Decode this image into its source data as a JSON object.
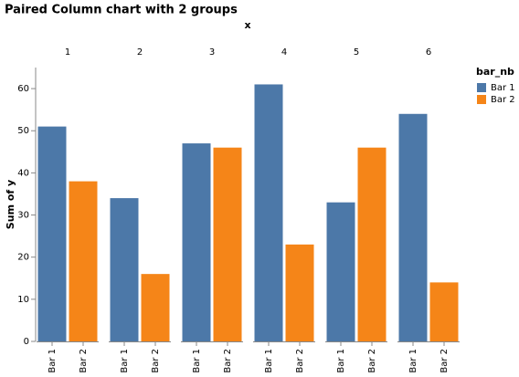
{
  "chart_data": {
    "type": "bar",
    "title": "Paired Column chart with 2 groups",
    "column_title": "x",
    "y_label": "Sum of y",
    "legend_title": "bar_nb",
    "categories": [
      "1",
      "2",
      "3",
      "4",
      "5",
      "6"
    ],
    "series": [
      {
        "name": "Bar 1",
        "color": "#4c78a8",
        "values": [
          51,
          34,
          47,
          61,
          33,
          54
        ]
      },
      {
        "name": "Bar 2",
        "color": "#f58518",
        "values": [
          38,
          16,
          46,
          23,
          46,
          14
        ]
      }
    ],
    "ylim": [
      0,
      65
    ],
    "yticks": [
      0,
      10,
      20,
      30,
      40,
      50,
      60
    ],
    "grid": false,
    "legend": "right"
  }
}
